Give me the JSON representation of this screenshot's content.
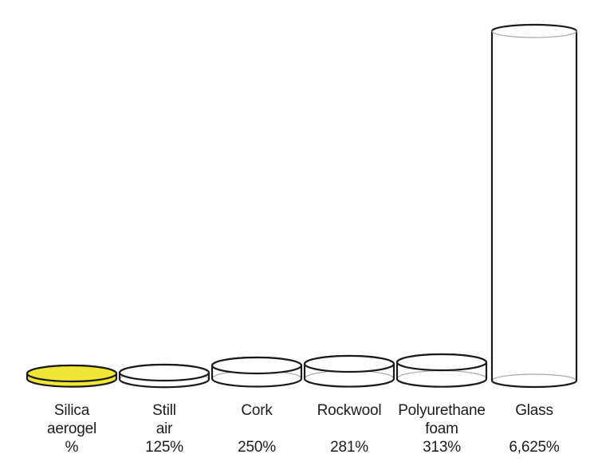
{
  "chart_data": {
    "type": "bar",
    "style": "3d-cylinder-pictogram",
    "title": "",
    "xlabel": "",
    "ylabel": "",
    "unit": "%",
    "legend": null,
    "grid": false,
    "categories": [
      "Silica aerogel",
      "Still air",
      "Cork",
      "Rockwool",
      "Polyurethane foam",
      "Glass"
    ],
    "values": [
      100,
      125,
      250,
      281,
      313,
      6625
    ],
    "items": [
      {
        "id": "silica-aerogel",
        "name_lines": [
          "Silica",
          "aerogel"
        ],
        "value": 100,
        "value_label": "%",
        "fill": "#f0e636",
        "transparent": false,
        "open_top": false
      },
      {
        "id": "still-air",
        "name_lines": [
          "Still",
          "air"
        ],
        "value": 125,
        "value_label": "125%",
        "fill": "#ffffff",
        "transparent": true,
        "open_top": false
      },
      {
        "id": "cork",
        "name_lines": [
          "Cork"
        ],
        "value": 250,
        "value_label": "250%",
        "fill": "#ffffff",
        "transparent": true,
        "open_top": false
      },
      {
        "id": "rockwool",
        "name_lines": [
          "Rockwool"
        ],
        "value": 281,
        "value_label": "281%",
        "fill": "#ffffff",
        "transparent": true,
        "open_top": false
      },
      {
        "id": "polyurethane-foam",
        "name_lines": [
          "Polyurethane",
          "foam"
        ],
        "value": 313,
        "value_label": "313%",
        "fill": "#ffffff",
        "transparent": true,
        "open_top": false
      },
      {
        "id": "glass",
        "name_lines": [
          "Glass"
        ],
        "value": 6625,
        "value_label": "6,625%",
        "fill": "#ffffff",
        "transparent": true,
        "open_top": true
      }
    ],
    "colors": {
      "outline": "#1a1a1a",
      "back_edge": "#a8a8a8",
      "text": "#1c1c1c",
      "highlight_fill": "#f0e636",
      "background": "#ffffff"
    }
  }
}
